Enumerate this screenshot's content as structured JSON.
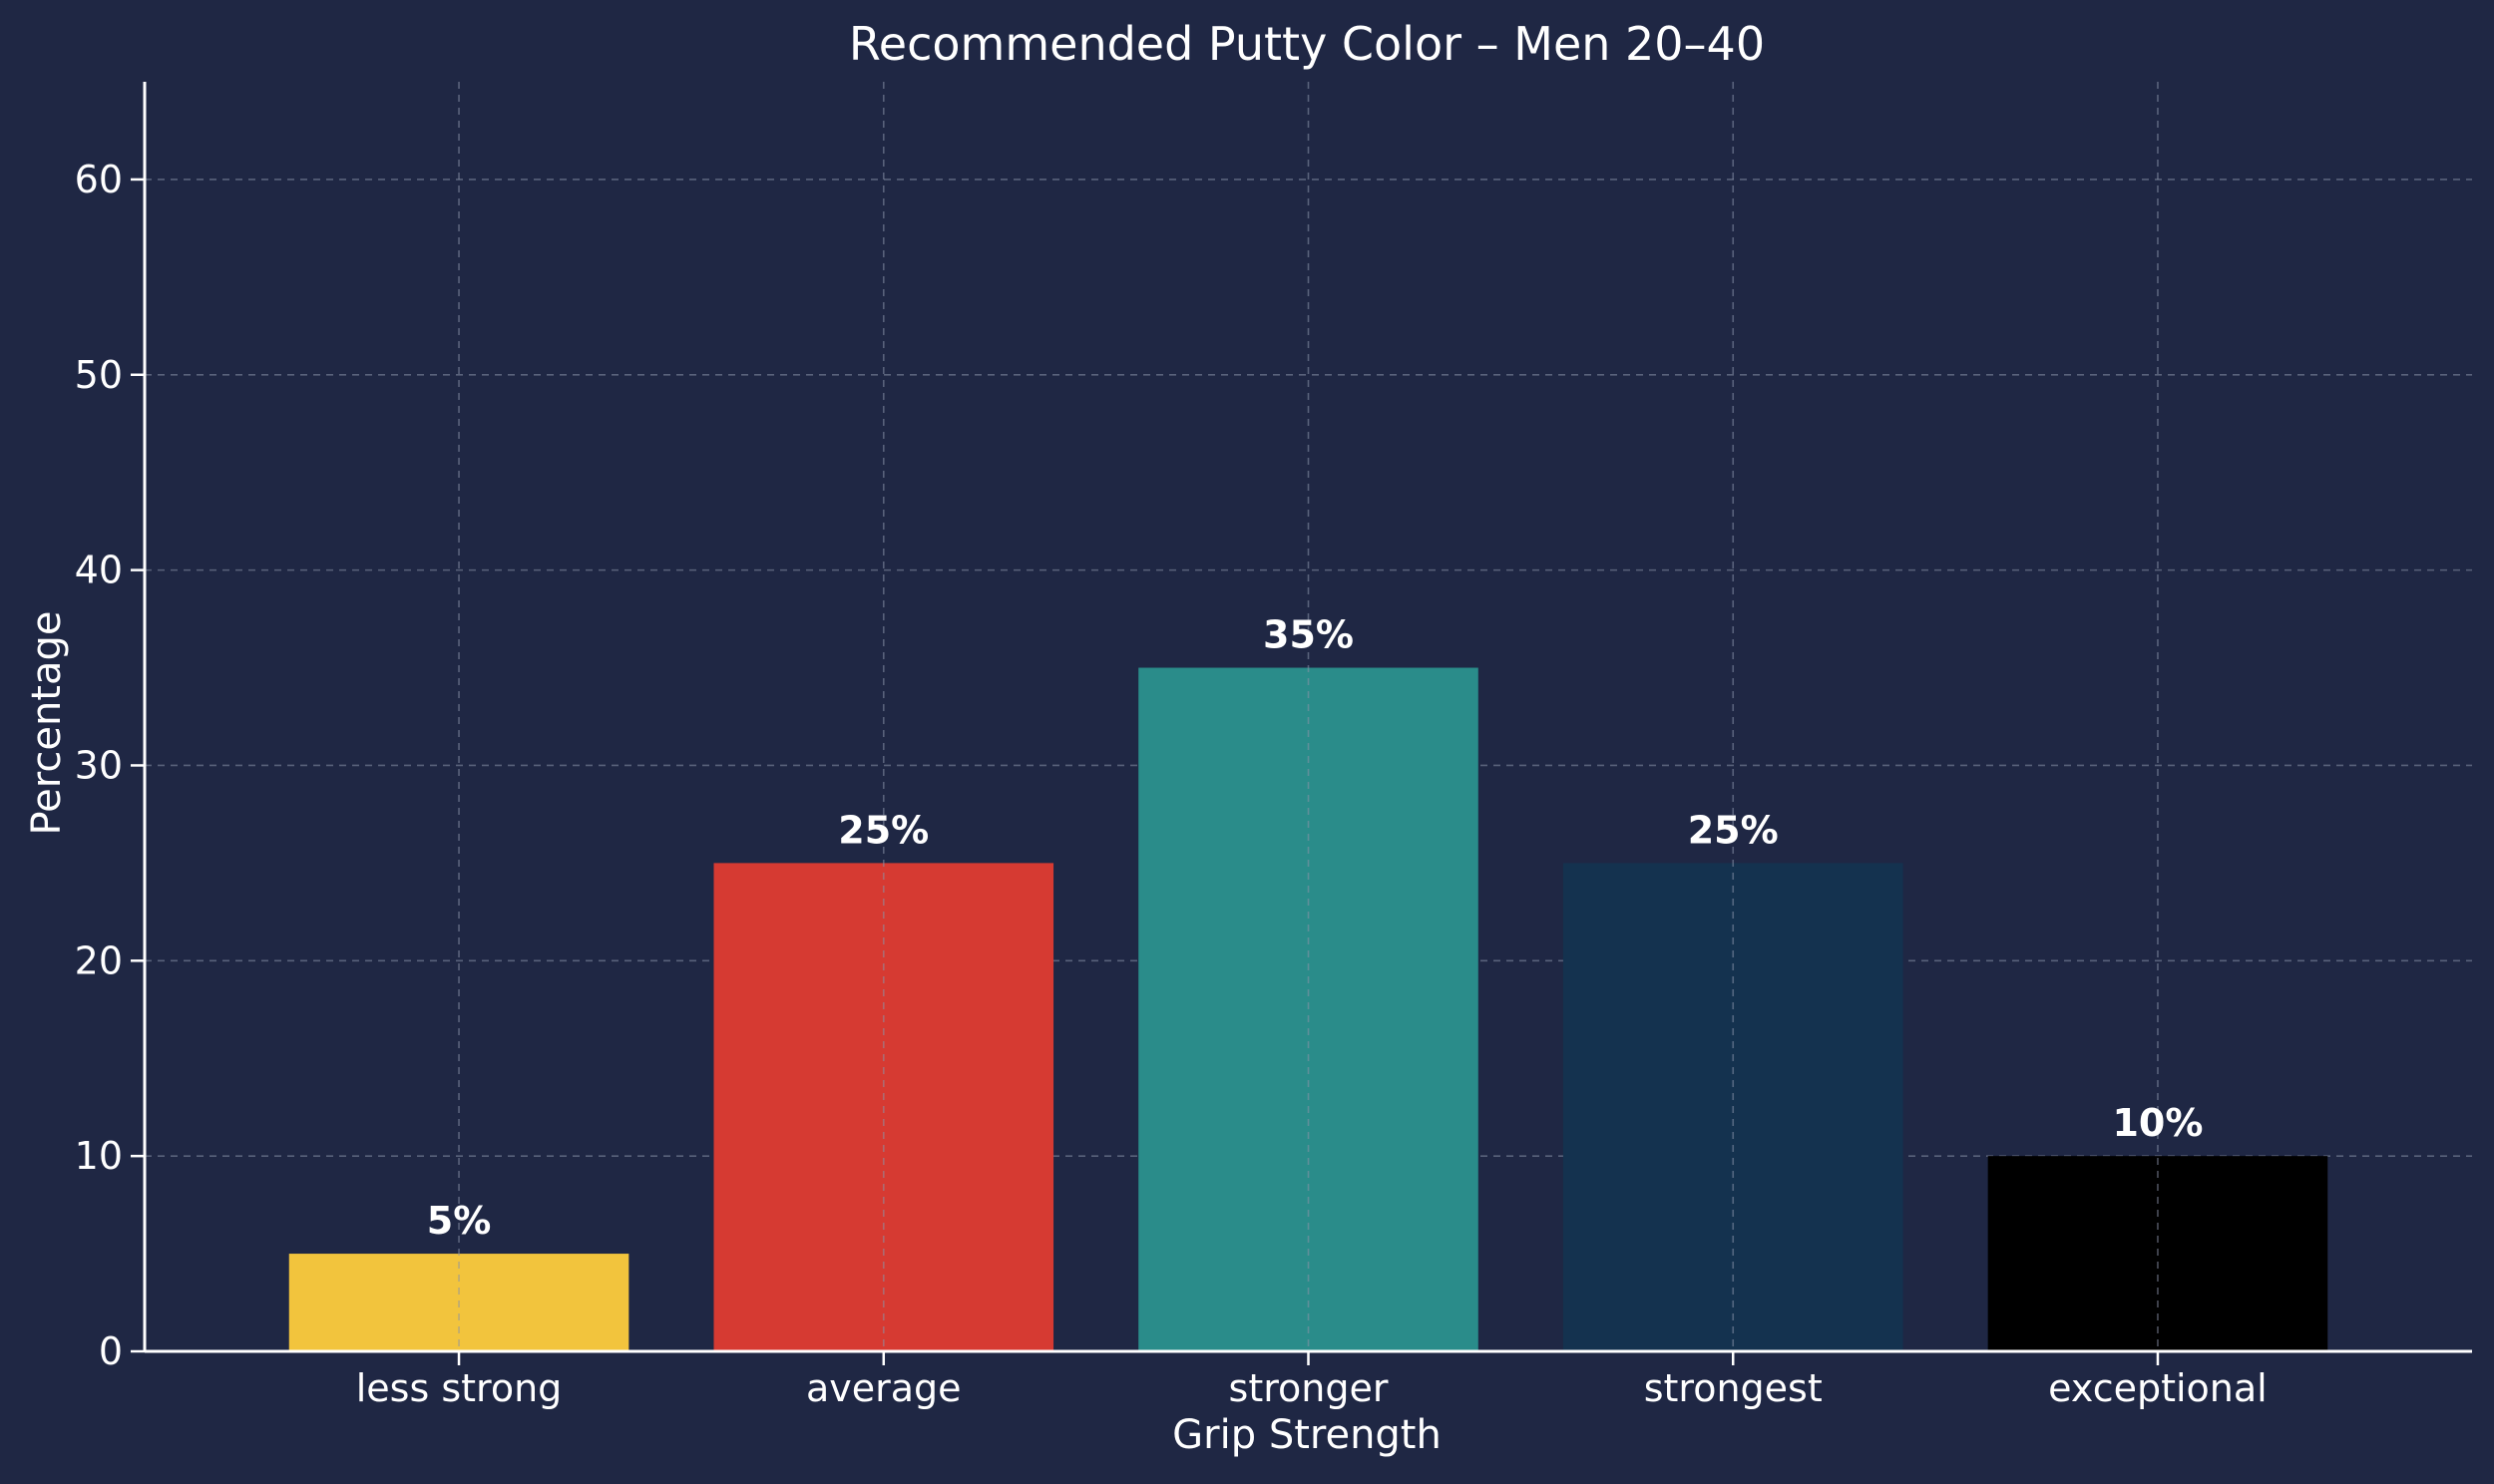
{
  "chart_data": {
    "type": "bar",
    "title": "Recommended Putty Color – Men 20–40",
    "xlabel": "Grip Strength",
    "ylabel": "Percentage",
    "categories": [
      "less strong",
      "average",
      "stronger",
      "strongest",
      "exceptional"
    ],
    "values": [
      5,
      25,
      35,
      25,
      10
    ],
    "data_labels": [
      "5%",
      "25%",
      "35%",
      "25%",
      "10%"
    ],
    "bar_colors": [
      "#f2c43d",
      "#d63a32",
      "#2a8c8a",
      "#14324f",
      "#000000"
    ],
    "ylim": [
      0,
      65
    ],
    "yticks": [
      0,
      10,
      20,
      30,
      40,
      50,
      60
    ],
    "grid": true,
    "background_color": "#1f2744"
  }
}
